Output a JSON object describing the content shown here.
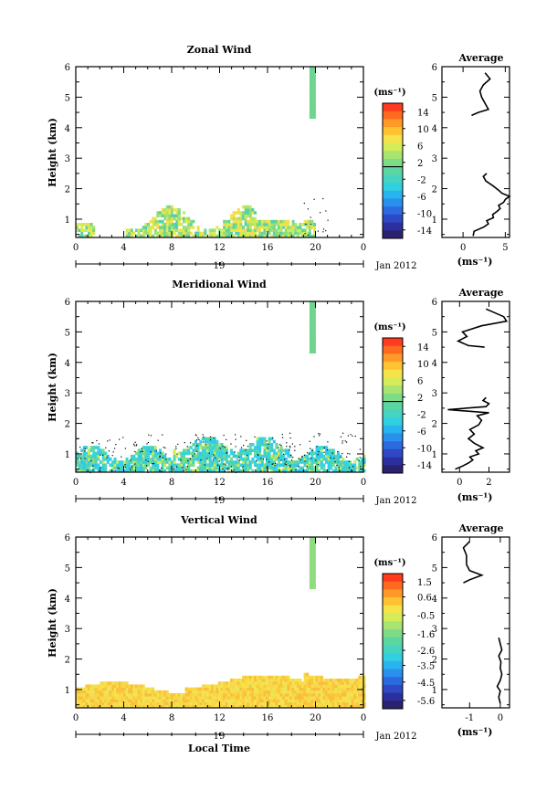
{
  "chart_data": [
    {
      "type": "heatmap",
      "title": "Zonal Wind",
      "ylabel": "Height (km)",
      "xlabel": "",
      "x_ticks": [
        "0",
        "4",
        "8",
        "12",
        "16",
        "20",
        "0"
      ],
      "y_ticks": [
        "1",
        "2",
        "3",
        "4",
        "5",
        "6"
      ],
      "xlim": [
        0,
        24
      ],
      "ylim": [
        0.4,
        6
      ],
      "date_day": "19",
      "date_label": "Jan 2012",
      "colorbar_unit": "(ms⁻¹)",
      "colorbar_ticks": [
        "14",
        "10",
        "6",
        "2",
        "-2",
        "-6",
        "-10",
        "-14"
      ],
      "colorbar_range": [
        -16,
        16
      ],
      "average": {
        "title": "Average",
        "x_ticks": [
          "0",
          "5"
        ],
        "xlim": [
          -2.5,
          5.5
        ],
        "xlabel": "(ms⁻¹)",
        "profile_lower": [
          [
            1.2,
            0.45
          ],
          [
            1.3,
            0.6
          ],
          [
            2.5,
            0.75
          ],
          [
            3.0,
            0.85
          ],
          [
            2.8,
            0.95
          ],
          [
            3.6,
            1.05
          ],
          [
            3.5,
            1.15
          ],
          [
            4.0,
            1.25
          ],
          [
            4.4,
            1.35
          ],
          [
            4.2,
            1.45
          ],
          [
            4.8,
            1.55
          ],
          [
            5.0,
            1.65
          ],
          [
            5.5,
            1.75
          ],
          [
            4.6,
            1.85
          ],
          [
            4.2,
            1.95
          ],
          [
            3.5,
            2.1
          ],
          [
            2.7,
            2.25
          ],
          [
            2.4,
            2.4
          ],
          [
            2.8,
            2.5
          ]
        ],
        "profile_upper": [
          [
            1.0,
            4.4
          ],
          [
            1.8,
            4.5
          ],
          [
            3.0,
            4.6
          ],
          [
            2.6,
            4.8
          ],
          [
            2.2,
            5.0
          ],
          [
            2.0,
            5.2
          ],
          [
            2.4,
            5.4
          ],
          [
            3.2,
            5.6
          ],
          [
            2.6,
            5.8
          ]
        ]
      }
    },
    {
      "type": "heatmap",
      "title": "Meridional Wind",
      "ylabel": "Height (km)",
      "xlabel": "",
      "x_ticks": [
        "0",
        "4",
        "8",
        "12",
        "16",
        "20",
        "0"
      ],
      "y_ticks": [
        "1",
        "2",
        "3",
        "4",
        "5",
        "6"
      ],
      "xlim": [
        0,
        24
      ],
      "ylim": [
        0.4,
        6
      ],
      "date_day": "19",
      "date_label": "Jan 2012",
      "colorbar_unit": "(ms⁻¹)",
      "colorbar_ticks": [
        "14",
        "10",
        "6",
        "2",
        "-2",
        "-6",
        "-10",
        "-14"
      ],
      "colorbar_range": [
        -16,
        16
      ],
      "average": {
        "title": "Average",
        "x_ticks": [
          "0",
          "2"
        ],
        "xlim": [
          -1.2,
          3.4
        ],
        "xlabel": "(ms⁻¹)",
        "profile_lower": [
          [
            -0.3,
            0.5
          ],
          [
            0.2,
            0.6
          ],
          [
            0.6,
            0.7
          ],
          [
            0.9,
            0.8
          ],
          [
            0.7,
            0.9
          ],
          [
            1.3,
            1.0
          ],
          [
            1.1,
            1.1
          ],
          [
            1.6,
            1.2
          ],
          [
            1.0,
            1.35
          ],
          [
            0.6,
            1.5
          ],
          [
            1.0,
            1.65
          ],
          [
            0.7,
            1.8
          ],
          [
            1.3,
            1.95
          ],
          [
            1.5,
            2.1
          ],
          [
            1.2,
            2.25
          ],
          [
            2.0,
            2.35
          ],
          [
            -0.8,
            2.45
          ],
          [
            1.8,
            2.55
          ],
          [
            2.0,
            2.65
          ],
          [
            1.6,
            2.75
          ],
          [
            1.8,
            2.85
          ]
        ],
        "profile_upper": [
          [
            1.7,
            4.5
          ],
          [
            0.6,
            4.55
          ],
          [
            -0.1,
            4.7
          ],
          [
            0.5,
            4.85
          ],
          [
            0.2,
            5.0
          ],
          [
            1.5,
            5.2
          ],
          [
            3.2,
            5.35
          ],
          [
            3.0,
            5.5
          ],
          [
            1.8,
            5.75
          ]
        ]
      }
    },
    {
      "type": "heatmap",
      "title": "Vertical Wind",
      "ylabel": "Height (km)",
      "xlabel": "Local Time",
      "x_ticks": [
        "0",
        "4",
        "8",
        "12",
        "16",
        "20",
        "0"
      ],
      "y_ticks": [
        "1",
        "2",
        "3",
        "4",
        "5",
        "6"
      ],
      "xlim": [
        0,
        24
      ],
      "ylim": [
        0.4,
        6
      ],
      "date_day": "19",
      "date_label": "Jan 2012",
      "colorbar_unit": "(ms⁻¹)",
      "colorbar_ticks": [
        "1.5",
        "0.6",
        "-0.5",
        "-1.6",
        "-2.6",
        "-3.5",
        "-4.5",
        "-5.6"
      ],
      "colorbar_range": [
        -6.1,
        2.0
      ],
      "average": {
        "title": "Average",
        "x_ticks": [
          "-1",
          "0"
        ],
        "xlim": [
          -1.9,
          0.3
        ],
        "xlabel": "(ms⁻¹)",
        "profile_lower": [
          [
            0.0,
            0.55
          ],
          [
            -0.05,
            0.75
          ],
          [
            0.0,
            0.95
          ],
          [
            -0.1,
            1.1
          ],
          [
            0.0,
            1.3
          ],
          [
            0.05,
            1.5
          ],
          [
            0.0,
            1.7
          ],
          [
            0.02,
            1.9
          ],
          [
            -0.05,
            2.1
          ],
          [
            0.05,
            2.3
          ],
          [
            0.0,
            2.5
          ],
          [
            -0.05,
            2.7
          ]
        ],
        "profile_upper": [
          [
            -1.2,
            4.5
          ],
          [
            -1.0,
            4.6
          ],
          [
            -0.6,
            4.75
          ],
          [
            -1.0,
            4.9
          ],
          [
            -1.1,
            5.1
          ],
          [
            -1.1,
            5.4
          ],
          [
            -1.2,
            5.65
          ],
          [
            -1.0,
            5.85
          ]
        ]
      }
    }
  ]
}
